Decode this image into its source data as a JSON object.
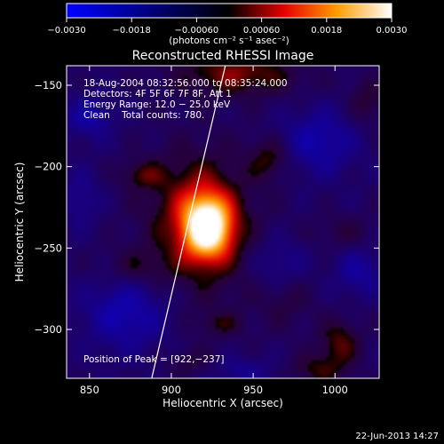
{
  "chart_data": {
    "type": "heatmap",
    "title": "Reconstructed RHESSI Image",
    "xlabel": "Heliocentric X (arcsec)",
    "ylabel": "Heliocentric Y (arcsec)",
    "xlim": [
      836,
      1027
    ],
    "ylim": [
      -330,
      -138
    ],
    "x_ticks": [
      850,
      900,
      950,
      1000
    ],
    "x_tick_labels": [
      "850",
      "900",
      "950",
      "1000"
    ],
    "y_ticks": [
      -150,
      -200,
      -250,
      -300
    ],
    "y_tick_labels": [
      "−150",
      "−200",
      "−250",
      "−300"
    ],
    "colorbar": {
      "range": [
        -0.003,
        0.003
      ],
      "ticks": [
        -0.003,
        -0.0018,
        -0.0006,
        0.0006,
        0.0018,
        0.003
      ],
      "tick_labels": [
        "−0.0030",
        "−0.0018",
        "−0.00060",
        "0.00060",
        "0.0018",
        "0.0030"
      ],
      "unit_label": "(photons cm⁻² s⁻¹ asec⁻²)"
    },
    "annotations": {
      "time_range": "18-Aug-2004 08:32:56.000 to 08:35:24.000",
      "detectors": "Detectors: 4F 5F 6F 7F 8F, Att 1",
      "energy_range": "Energy Range: 12.0 − 25.0 keV",
      "clean": "Clean    Total counts: 780.",
      "peak": "Position of Peak = [922,−237]"
    },
    "peak": {
      "x": 922,
      "y": -237,
      "value": 0.003
    },
    "limb_line": [
      [
        888,
        -330
      ],
      [
        933,
        -138
      ]
    ],
    "blobs": [
      {
        "x": 922,
        "y": -237,
        "sx": 10,
        "sy": 13,
        "amp": 0.0036
      },
      {
        "x": 915,
        "y": -223,
        "sx": 20,
        "sy": 24,
        "amp": 0.001
      },
      {
        "x": 922,
        "y": -250,
        "sx": 25,
        "sy": 30,
        "amp": 0.0006
      },
      {
        "x": 940,
        "y": -143,
        "sx": 26,
        "sy": 10,
        "amp": 0.0012
      },
      {
        "x": 960,
        "y": -195,
        "sx": 9,
        "sy": 9,
        "amp": 0.0009
      },
      {
        "x": 882,
        "y": -205,
        "sx": 9,
        "sy": 6,
        "amp": 0.0008
      },
      {
        "x": 878,
        "y": -262,
        "sx": 15,
        "sy": 8,
        "amp": 0.0006
      },
      {
        "x": 1005,
        "y": -240,
        "sx": 13,
        "sy": 7,
        "amp": 0.0005
      },
      {
        "x": 1003,
        "y": -308,
        "sx": 9,
        "sy": 10,
        "amp": 0.001
      },
      {
        "x": 990,
        "y": -325,
        "sx": 12,
        "sy": 7,
        "amp": 0.0008
      },
      {
        "x": 930,
        "y": -297,
        "sx": 10,
        "sy": 5,
        "amp": 0.0006
      },
      {
        "x": 910,
        "y": -320,
        "sx": 9,
        "sy": 6,
        "amp": 0.0005
      },
      {
        "x": 970,
        "y": -282,
        "sx": 11,
        "sy": 12,
        "amp": 0.0005
      },
      {
        "x": 1020,
        "y": -160,
        "sx": 8,
        "sy": 10,
        "amp": 0.0007
      },
      {
        "x": 850,
        "y": -170,
        "sx": 10,
        "sy": 9,
        "amp": -0.0009
      },
      {
        "x": 873,
        "y": -290,
        "sx": 18,
        "sy": 16,
        "amp": -0.0011
      },
      {
        "x": 990,
        "y": -185,
        "sx": 16,
        "sy": 14,
        "amp": -0.001
      },
      {
        "x": 965,
        "y": -260,
        "sx": 12,
        "sy": 12,
        "amp": -0.0007
      },
      {
        "x": 1015,
        "y": -265,
        "sx": 10,
        "sy": 10,
        "amp": -0.0008
      },
      {
        "x": 845,
        "y": -220,
        "sx": 8,
        "sy": 12,
        "amp": -0.0006
      },
      {
        "x": 945,
        "y": -325,
        "sx": 12,
        "sy": 6,
        "amp": -0.0006
      }
    ]
  },
  "footer": {
    "timestamp": "22-Jun-2013 14:27"
  }
}
